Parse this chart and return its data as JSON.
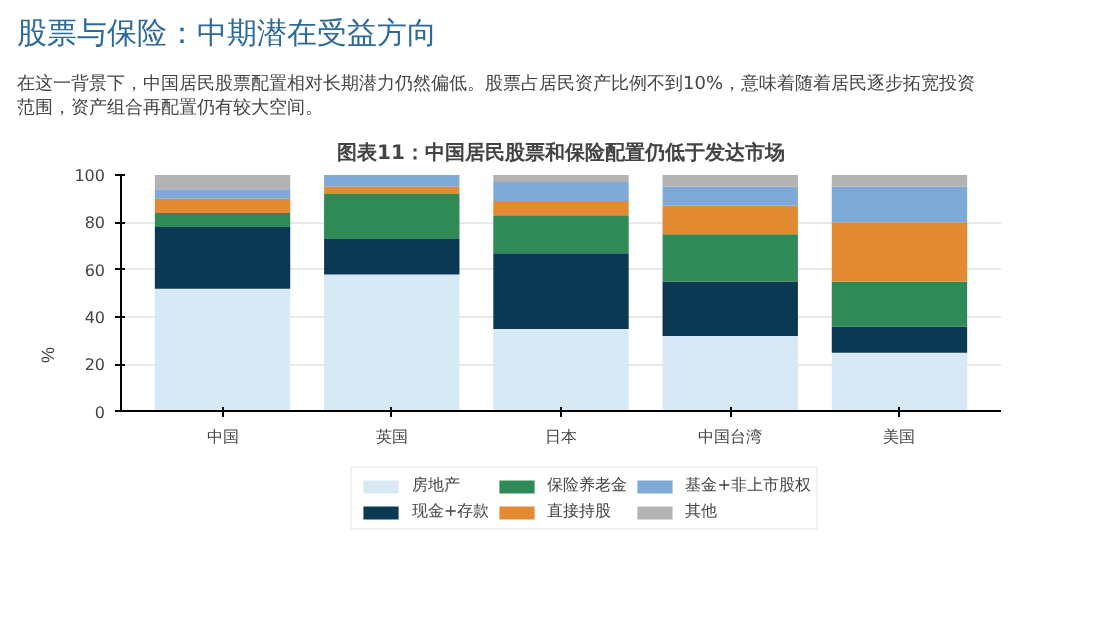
{
  "chart_data": {
    "type": "bar",
    "stacked": true,
    "title": "股票与保险：中期潜在受益方向",
    "subtitle": "在这一背景下，中国居民股票配置相对长期潜力仍然偏低。股票占居民资产比例不到10%，意味着随着居民逐步拓宽投资范围，资产组合再配置仍有较大空间。",
    "annotations": [
      "图表11：中国居民股票和保险配置仍低于发达市场"
    ],
    "ylabel": "%",
    "categories": [
      "中国",
      "英国",
      "日本",
      "中国台湾",
      "美国"
    ],
    "series": [
      {
        "name": "房地产",
        "color": "#d6e9f5",
        "values": [
          52,
          58,
          35,
          32,
          25
        ]
      },
      {
        "name": "现金+存款",
        "color": "#0b3954",
        "values": [
          26,
          15,
          32,
          23,
          11
        ]
      },
      {
        "name": "保险养老金",
        "color": "#2e8b57",
        "values": [
          6,
          19,
          16,
          20,
          19
        ]
      },
      {
        "name": "直接持股",
        "color": "#e38b32",
        "values": [
          6,
          3,
          6,
          12,
          25
        ]
      },
      {
        "name": "基金+非上市股权",
        "color": "#7fa9d6",
        "values": [
          4,
          5,
          8,
          8,
          15
        ]
      },
      {
        "name": "其他",
        "color": "#b3b3b3",
        "values": [
          6,
          null,
          3,
          5,
          5
        ]
      }
    ],
    "ylim": [
      0,
      100
    ],
    "yticks": [
      0,
      20,
      40,
      60,
      80,
      100
    ],
    "grid": "y",
    "legend": "bottom"
  }
}
